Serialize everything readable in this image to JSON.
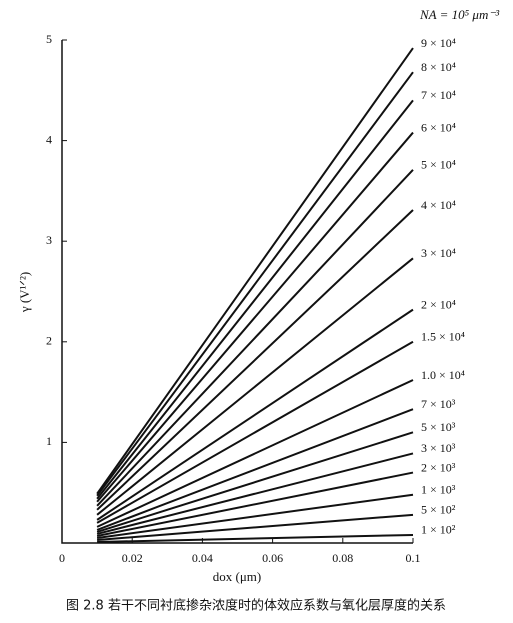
{
  "chart_data": {
    "type": "line",
    "legend_title": "NA = 10⁵ μm⁻³",
    "xlabel": "dox (μm)",
    "ylabel": "γ (V¹ᐟ²)",
    "caption": "图 2.8  若干不同衬底掺杂浓度时的体效应系数与氧化层厚度的关系",
    "x": [
      0.01,
      0.1
    ],
    "xlim": [
      0,
      0.1
    ],
    "xticks": [
      0,
      0.02,
      0.04,
      0.06,
      0.08,
      0.1
    ],
    "ylim": [
      0,
      5
    ],
    "yticks": [
      1,
      2,
      3,
      4,
      5
    ],
    "series": [
      {
        "name": "9 × 10⁴",
        "color": "#111111",
        "values": [
          0.49,
          4.92
        ]
      },
      {
        "name": "8 × 10⁴",
        "color": "#111111",
        "values": [
          0.47,
          4.68
        ]
      },
      {
        "name": "7 × 10⁴",
        "color": "#111111",
        "values": [
          0.44,
          4.4
        ]
      },
      {
        "name": "6 × 10⁴",
        "color": "#111111",
        "values": [
          0.41,
          4.08
        ]
      },
      {
        "name": "5 × 10⁴",
        "color": "#111111",
        "values": [
          0.37,
          3.71
        ]
      },
      {
        "name": "4 × 10⁴",
        "color": "#111111",
        "values": [
          0.33,
          3.31
        ]
      },
      {
        "name": "3 × 10⁴",
        "color": "#111111",
        "values": [
          0.28,
          2.83
        ]
      },
      {
        "name": "2 × 10⁴",
        "color": "#111111",
        "values": [
          0.23,
          2.32
        ]
      },
      {
        "name": "1.5 × 10⁴",
        "color": "#111111",
        "values": [
          0.2,
          2.0
        ]
      },
      {
        "name": "1.0 × 10⁴",
        "color": "#111111",
        "values": [
          0.16,
          1.62
        ]
      },
      {
        "name": "7 × 10³",
        "color": "#111111",
        "values": [
          0.13,
          1.33
        ]
      },
      {
        "name": "5 × 10³",
        "color": "#111111",
        "values": [
          0.11,
          1.1
        ]
      },
      {
        "name": "3 × 10³",
        "color": "#111111",
        "values": [
          0.09,
          0.89
        ]
      },
      {
        "name": "2 × 10³",
        "color": "#111111",
        "values": [
          0.07,
          0.7
        ]
      },
      {
        "name": "1 × 10³",
        "color": "#111111",
        "values": [
          0.05,
          0.48
        ]
      },
      {
        "name": "5 × 10²",
        "color": "#111111",
        "values": [
          0.03,
          0.28
        ]
      },
      {
        "name": "1 × 10²",
        "color": "#111111",
        "values": [
          0.01,
          0.08
        ]
      }
    ]
  }
}
